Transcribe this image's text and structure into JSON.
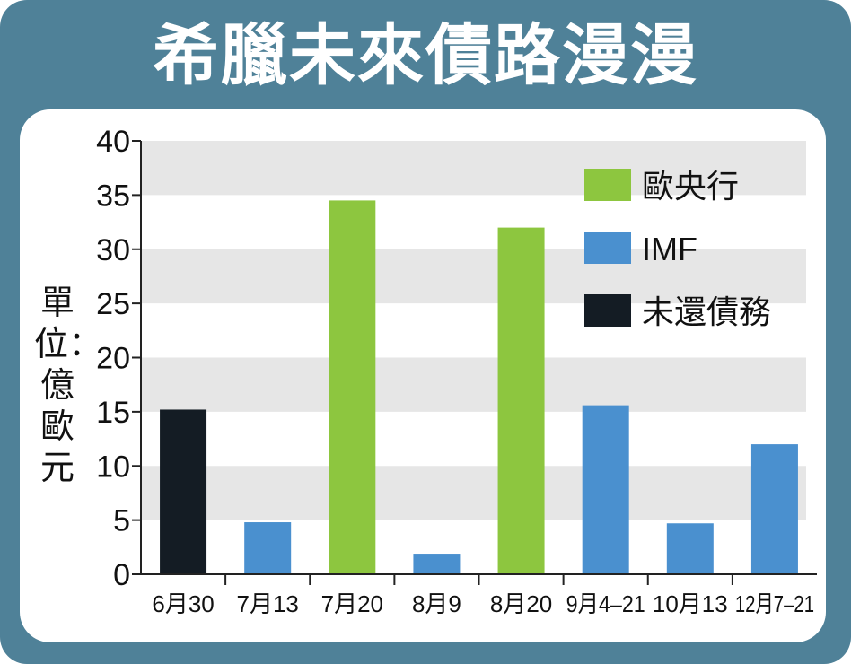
{
  "title": "希臘未來債路漫漫",
  "chart_data": {
    "type": "bar",
    "title": "希臘未來債路漫漫",
    "ylabel": "單位：億歐元",
    "xlabel": "",
    "ylim": [
      0,
      40
    ],
    "yticks": [
      0,
      5,
      10,
      15,
      20,
      25,
      30,
      35,
      40
    ],
    "categories": [
      "6月30",
      "7月13",
      "7月20",
      "8月9",
      "8月20",
      "9月4–21",
      "10月13",
      "12月7–21"
    ],
    "values": [
      15.2,
      4.8,
      34.5,
      1.9,
      32.0,
      15.6,
      4.7,
      12.0
    ],
    "groups": [
      "未還債務",
      "IMF",
      "歐央行",
      "IMF",
      "歐央行",
      "IMF",
      "IMF",
      "IMF"
    ],
    "legend": {
      "position": "top-right",
      "items": [
        {
          "name": "歐央行",
          "color": "#8dc63f"
        },
        {
          "name": "IMF",
          "color": "#4a90cf"
        },
        {
          "name": "未還債務",
          "color": "#141c24"
        }
      ]
    },
    "grid": "alternating-bands",
    "colors": {
      "歐央行": "#8dc63f",
      "IMF": "#4a90cf",
      "未還債務": "#141c24",
      "band": "#e6e6e6",
      "frame": "#4f8198"
    }
  }
}
